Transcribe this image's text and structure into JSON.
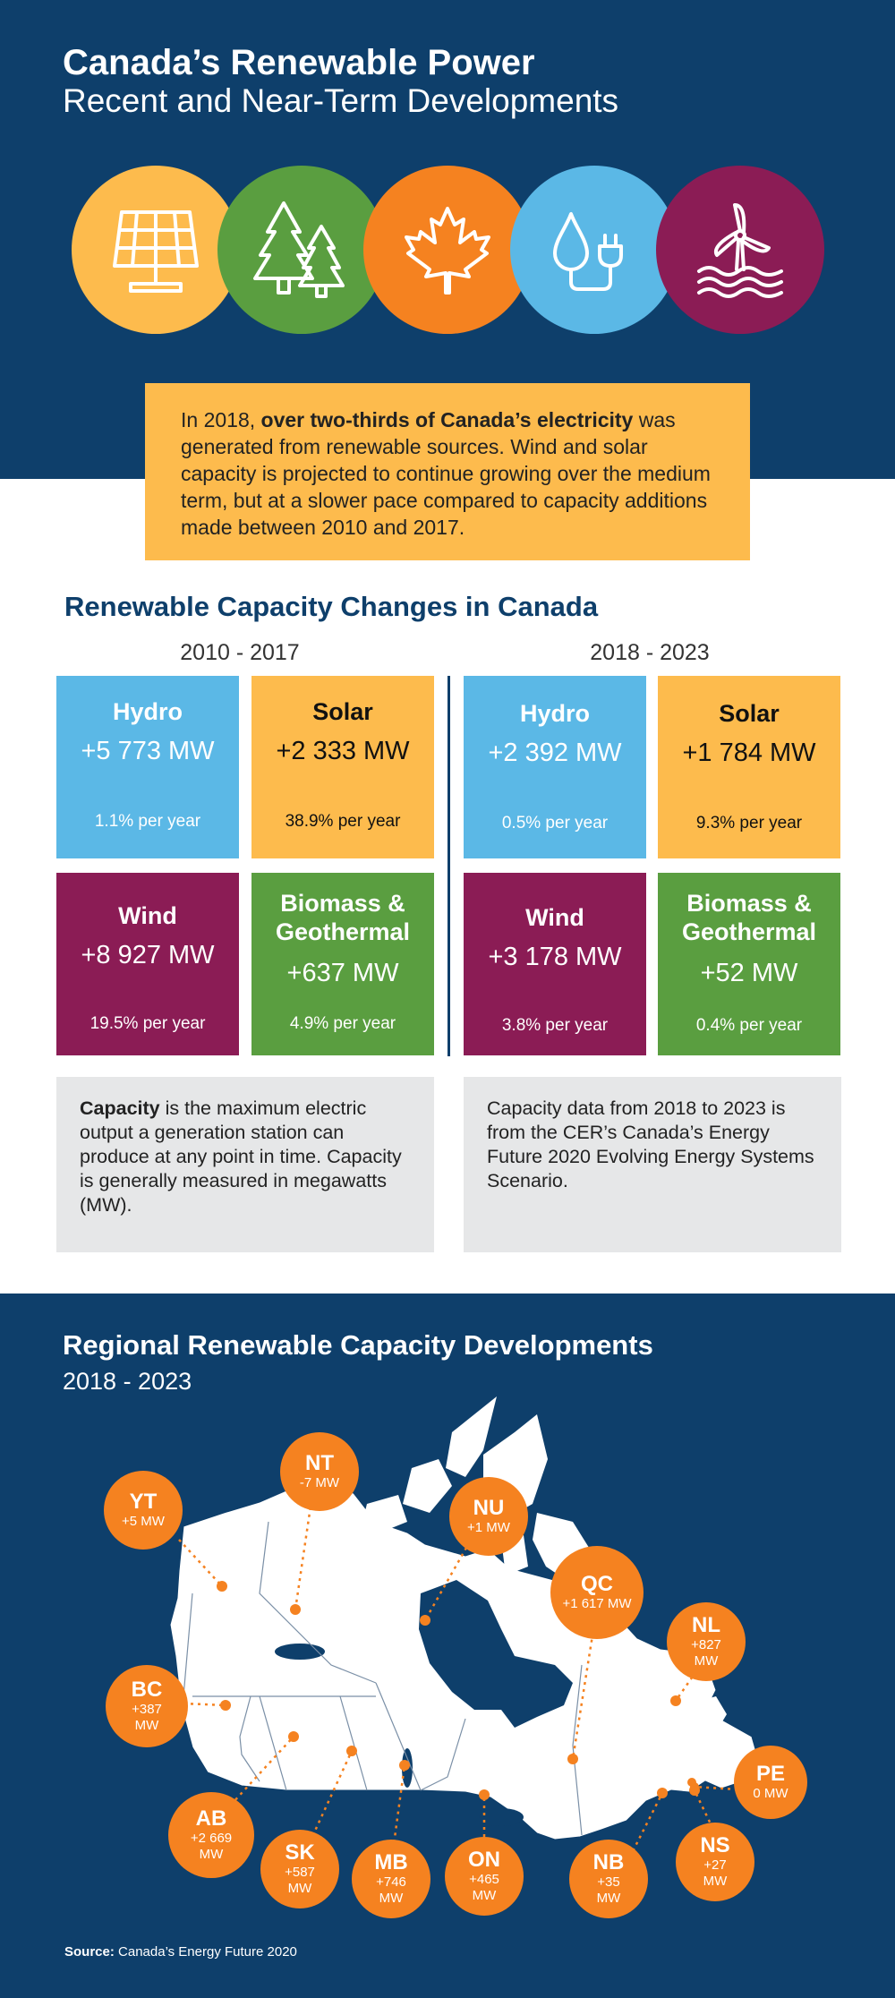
{
  "header": {
    "title": "Canada’s Renewable Power",
    "subtitle": "Recent and Near-Term Developments"
  },
  "icons": [
    {
      "name": "solar-panel-icon",
      "color": "#fdbb4d"
    },
    {
      "name": "trees-icon",
      "color": "#5a9e40"
    },
    {
      "name": "maple-leaf-icon",
      "color": "#f58220"
    },
    {
      "name": "water-drop-plug-icon",
      "color": "#5bb8e6"
    },
    {
      "name": "tidal-turbine-icon",
      "color": "#8b1c55"
    }
  ],
  "intro": {
    "pre": "In 2018, ",
    "bold": "over two-thirds of Canada’s electricity",
    "post": " was generated from renewable sources. Wind and solar capacity is projected to continue growing over the medium term, but at a slower pace compared to capacity additions made between 2010 and 2017."
  },
  "capacity_section": {
    "title": "Renewable Capacity Changes in Canada",
    "periods": [
      {
        "label": "2010 - 2017",
        "tiles": [
          {
            "name": "Hydro",
            "value": "+5 773 MW",
            "rate": "1.1% per year"
          },
          {
            "name": "Solar",
            "value": "+2 333 MW",
            "rate": "38.9% per year"
          },
          {
            "name": "Wind",
            "value": "+8 927 MW",
            "rate": "19.5% per year"
          },
          {
            "name": "Biomass & Geothermal",
            "value": "+637 MW",
            "rate": "4.9% per year"
          }
        ]
      },
      {
        "label": "2018 - 2023",
        "tiles": [
          {
            "name": "Hydro",
            "value": "+2 392 MW",
            "rate": "0.5% per year"
          },
          {
            "name": "Solar",
            "value": "+1 784 MW",
            "rate": "9.3% per year"
          },
          {
            "name": "Wind",
            "value": "+3 178 MW",
            "rate": "3.8% per year"
          },
          {
            "name": "Biomass & Geothermal",
            "value": "+52 MW",
            "rate": "0.4% per year"
          }
        ]
      }
    ],
    "notes": {
      "left_bold": "Capacity",
      "left_rest": " is the maximum electric output a generation station can produce at any point in time. Capacity is generally measured in megawatts (MW).",
      "right": "Capacity data from 2018 to 2023 is from the CER’s Canada’s Energy Future 2020 Evolving Energy Systems Scenario."
    }
  },
  "regional": {
    "title": "Regional Renewable Capacity Developments",
    "subtitle": "2018 - 2023",
    "regions": [
      {
        "code": "YT",
        "value": "+5 MW"
      },
      {
        "code": "NT",
        "value": "-7 MW"
      },
      {
        "code": "NU",
        "value": "+1 MW"
      },
      {
        "code": "QC",
        "value": "+1 617 MW"
      },
      {
        "code": "NL",
        "value": "+827 MW"
      },
      {
        "code": "BC",
        "value": "+387 MW"
      },
      {
        "code": "PE",
        "value": "0 MW"
      },
      {
        "code": "AB",
        "value": "+2 669 MW"
      },
      {
        "code": "SK",
        "value": "+587 MW"
      },
      {
        "code": "MB",
        "value": "+746 MW"
      },
      {
        "code": "ON",
        "value": "+465 MW"
      },
      {
        "code": "NB",
        "value": "+35 MW"
      },
      {
        "code": "NS",
        "value": "+27 MW"
      }
    ]
  },
  "source": {
    "label": "Source:",
    "text": " Canada’s Energy Future 2020"
  },
  "colors": {
    "navy": "#0e3f6b",
    "yellow": "#fdbb4d",
    "green": "#5a9e40",
    "orange": "#f58220",
    "blue": "#5bb8e6",
    "purple": "#8b1c55",
    "grey": "#e6e7e8"
  }
}
